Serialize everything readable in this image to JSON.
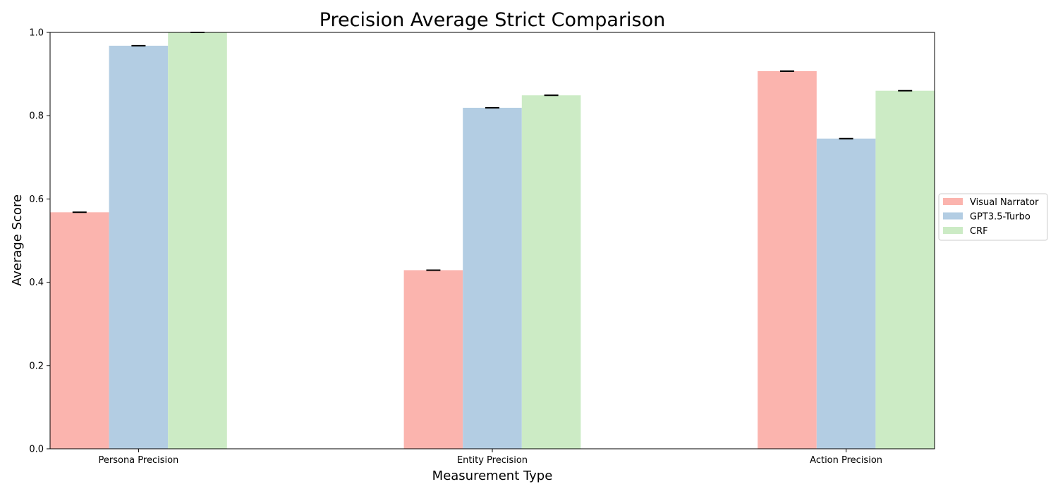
{
  "chart_data": {
    "type": "bar",
    "title": "Precision Average Strict Comparison",
    "xlabel": "Measurement Type",
    "ylabel": "Average Score",
    "categories": [
      "Persona Precision",
      "Entity Precision",
      "Action Precision"
    ],
    "series": [
      {
        "name": "Visual Narrator",
        "color": "#fbb4ae",
        "values": [
          0.568,
          0.429,
          0.907
        ]
      },
      {
        "name": "GPT3.5-Turbo",
        "color": "#b3cde3",
        "values": [
          0.968,
          0.819,
          0.745
        ]
      },
      {
        "name": "CRF",
        "color": "#ccebc5",
        "values": [
          1.0,
          0.849,
          0.86
        ]
      }
    ],
    "ylim": [
      0,
      1.0
    ],
    "yticks": [
      "0.0",
      "0.2",
      "0.4",
      "0.6",
      "0.8",
      "1.0"
    ],
    "error_bars": true,
    "grid": false,
    "legend_position": "right"
  }
}
